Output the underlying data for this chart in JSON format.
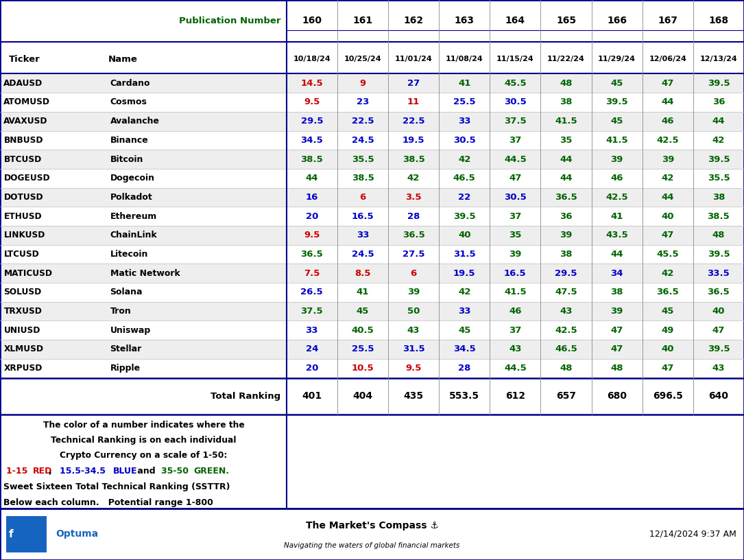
{
  "pub_numbers": [
    "160",
    "161",
    "162",
    "163",
    "164",
    "165",
    "166",
    "167",
    "168"
  ],
  "dates": [
    "10/18/24",
    "10/25/24",
    "11/01/24",
    "11/08/24",
    "11/15/24",
    "11/22/24",
    "11/29/24",
    "12/06/24",
    "12/13/24"
  ],
  "tickers": [
    "ADAUSD",
    "ATOMUSD",
    "AVAXUSD",
    "BNBUSD",
    "BTCUSD",
    "DOGEUSD",
    "DOTUSD",
    "ETHUSD",
    "LINKUSD",
    "LTCUSD",
    "MATICUSD",
    "SOLUSD",
    "TRXUSD",
    "UNIUSD",
    "XLMUSD",
    "XRPUSD"
  ],
  "names": [
    "Cardano",
    "Cosmos",
    "Avalanche",
    "Binance",
    "Bitcoin",
    "Dogecoin",
    "Polkadot",
    "Ethereum",
    "ChainLink",
    "Litecoin",
    "Matic Network",
    "Solana",
    "Tron",
    "Uniswap",
    "Stellar",
    "Ripple"
  ],
  "values": [
    [
      14.5,
      9,
      27,
      41,
      45.5,
      48,
      45,
      47,
      39.5
    ],
    [
      9.5,
      23,
      11,
      25.5,
      30.5,
      38,
      39.5,
      44,
      36
    ],
    [
      29.5,
      22.5,
      22.5,
      33,
      37.5,
      41.5,
      45,
      46,
      44
    ],
    [
      34.5,
      24.5,
      19.5,
      30.5,
      37,
      35,
      41.5,
      42.5,
      42
    ],
    [
      38.5,
      35.5,
      38.5,
      42,
      44.5,
      44,
      39,
      39,
      39.5
    ],
    [
      44,
      38.5,
      42,
      46.5,
      47,
      44,
      46,
      42,
      35.5
    ],
    [
      16,
      6,
      3.5,
      22,
      30.5,
      36.5,
      42.5,
      44,
      38
    ],
    [
      20,
      16.5,
      28,
      39.5,
      37,
      36,
      41,
      40,
      38.5
    ],
    [
      9.5,
      33,
      36.5,
      40,
      35,
      39,
      43.5,
      47,
      48
    ],
    [
      36.5,
      24.5,
      27.5,
      31.5,
      39,
      38,
      44,
      45.5,
      39.5
    ],
    [
      7.5,
      8.5,
      6,
      19.5,
      16.5,
      29.5,
      34,
      42,
      33.5
    ],
    [
      26.5,
      41,
      39,
      42,
      41.5,
      47.5,
      38,
      36.5,
      36.5
    ],
    [
      37.5,
      45,
      50,
      33,
      46,
      43,
      39,
      45,
      40
    ],
    [
      33,
      40.5,
      43,
      45,
      37,
      42.5,
      47,
      49,
      47
    ],
    [
      24,
      25.5,
      31.5,
      34.5,
      43,
      46.5,
      47,
      40,
      39.5
    ],
    [
      20,
      10.5,
      9.5,
      28,
      44.5,
      48,
      48,
      47,
      43
    ]
  ],
  "totals": [
    401,
    404,
    435,
    553.5,
    612,
    657,
    680,
    696.5,
    640
  ],
  "red_thresh": 15.0,
  "blue_thresh": 34.5,
  "red_color": "#CC0000",
  "blue_color": "#0000CC",
  "green_color": "#006400",
  "row_bg_alt": "#EEEEEE",
  "row_bg": "#FFFFFF",
  "border_color": "#00008B",
  "footnote_text": [
    "The color of a number indicates where the",
    "Technical Ranking is on each individual",
    "Crypto Currency on a scale of 1-50:"
  ],
  "footnote_line4": "Sweet Sixteen Total Technical Ranking (SSTTR)",
  "footnote_line5": "Below each column.   Potential range 1-800",
  "footer_left": "Optuma",
  "footer_center1": "The Market's Compass ⚓",
  "footer_center2": "Navigating the waters of global financial markets",
  "footer_right": "12/14/2024 9:37 AM",
  "pub_label": "Publication Number"
}
